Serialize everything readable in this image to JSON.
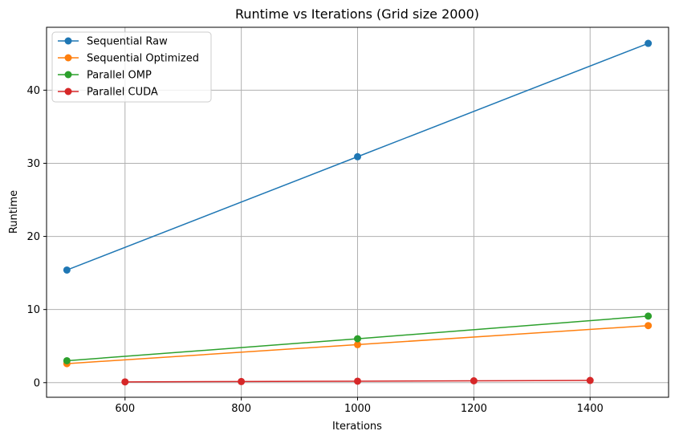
{
  "chart_data": {
    "type": "line",
    "title": "Runtime vs Iterations (Grid size 2000)",
    "xlabel": "Iterations",
    "ylabel": "Runtime",
    "xlim": [
      465,
      1535
    ],
    "ylim": [
      -2.0,
      48.6
    ],
    "xticks": [
      600,
      800,
      1000,
      1200,
      1400
    ],
    "yticks": [
      0,
      10,
      20,
      30,
      40
    ],
    "grid": true,
    "legend_position": "top-left",
    "series": [
      {
        "name": "Sequential Raw",
        "color": "#1f77b4",
        "marker": "circle",
        "x": [
          500,
          1000,
          1500
        ],
        "y": [
          15.4,
          30.9,
          46.4
        ]
      },
      {
        "name": "Sequential Optimized",
        "color": "#ff7f0e",
        "marker": "circle",
        "x": [
          500,
          1000,
          1500
        ],
        "y": [
          2.6,
          5.2,
          7.8
        ]
      },
      {
        "name": "Parallel OMP",
        "color": "#2ca02c",
        "marker": "circle",
        "x": [
          500,
          1000,
          1500
        ],
        "y": [
          3.0,
          6.0,
          9.1
        ]
      },
      {
        "name": "Parallel CUDA",
        "color": "#d62728",
        "marker": "circle",
        "x": [
          600,
          800,
          1000,
          1200,
          1400
        ],
        "y": [
          0.1,
          0.15,
          0.2,
          0.25,
          0.3
        ]
      }
    ]
  }
}
